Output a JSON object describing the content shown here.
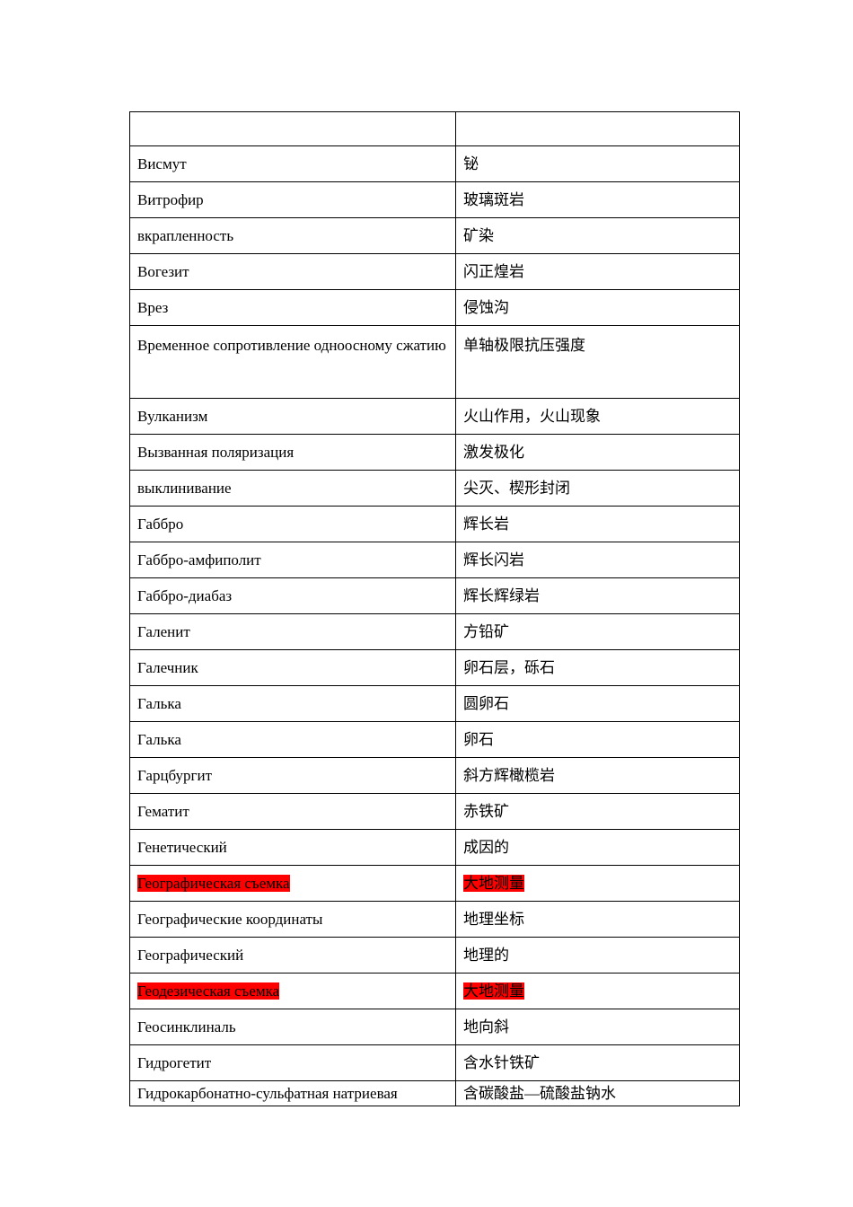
{
  "table": {
    "header": [
      "",
      ""
    ],
    "rows": [
      {
        "ru": "Висмут",
        "zh": "铋"
      },
      {
        "ru": "Витрофир",
        "zh": "玻璃斑岩"
      },
      {
        "ru": "вкрапленность",
        "zh": "矿染"
      },
      {
        "ru": "Вогезит",
        "zh": "闪正煌岩"
      },
      {
        "ru": "Врез",
        "zh": "侵蚀沟"
      },
      {
        "ru": "Временное сопротивление одноосному сжатию",
        "zh": "单轴极限抗压强度",
        "tall": true
      },
      {
        "ru": "Вулканизм",
        "zh": "火山作用，火山现象"
      },
      {
        "ru": "Вызванная поляризация",
        "zh": "激发极化"
      },
      {
        "ru": "выклинивание",
        "zh": "尖灭、楔形封闭"
      },
      {
        "ru": "Габбро",
        "zh": "辉长岩"
      },
      {
        "ru": "Габбро-амфиполит",
        "zh": "辉长闪岩"
      },
      {
        "ru": "Габбро-диабаз",
        "zh": "辉长辉绿岩"
      },
      {
        "ru": "Галенит",
        "zh": "方铅矿"
      },
      {
        "ru": "Галечник",
        "zh": "卵石层，砾石"
      },
      {
        "ru": "Галька",
        "zh": "圆卵石"
      },
      {
        "ru": "Галька",
        "zh": "卵石"
      },
      {
        "ru": "Гарцбургит",
        "zh": "斜方辉橄榄岩"
      },
      {
        "ru": "Гематит",
        "zh": "赤铁矿"
      },
      {
        "ru": "Генетический",
        "zh": "成因的"
      },
      {
        "ru": "Географическая съемка",
        "zh": "大地测量",
        "highlight": true
      },
      {
        "ru": "Географические координаты",
        "zh": "地理坐标"
      },
      {
        "ru": "Географический",
        "zh": "地理的"
      },
      {
        "ru": "Геодезическая съемка",
        "zh": "大地测量",
        "highlight": true
      },
      {
        "ru": "Геосинклиналь",
        "zh": "地向斜"
      },
      {
        "ru": "Гидрогетит",
        "zh": "含水针铁矿"
      },
      {
        "ru": "Гидрокарбонатно-сульфатная натриевая",
        "zh": "含碳酸盐—硫酸盐钠水",
        "last": true
      }
    ]
  },
  "colors": {
    "highlight": "#ff0000",
    "border": "#000000"
  }
}
